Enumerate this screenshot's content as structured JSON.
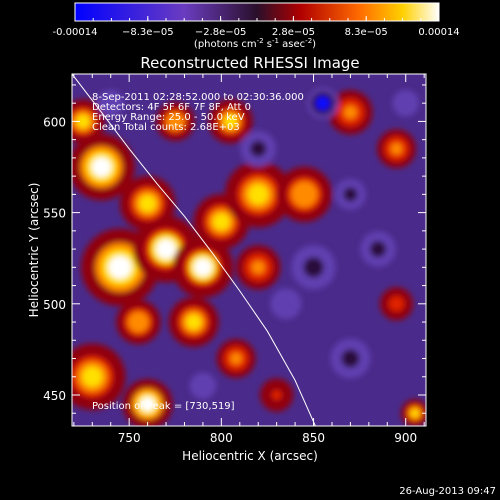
{
  "colorbar": {
    "tick_labels": [
      "-0.00014",
      "−8.3e−05",
      "−2.8e−05",
      "2.8e−05",
      "8.3e−05",
      "0.00014"
    ],
    "units_prefix": "(photons cm",
    "units_exp1": "-2",
    "units_mid": " s",
    "units_exp2": "-1",
    "units_end": " asec",
    "units_exp3": "-2",
    "units_close": ")"
  },
  "annotations": {
    "time_range": "8-Sep-2011 02:28:52.000 to 02:30:36.000",
    "detectors": "Detectors: 4F 5F 6F 7F 8F, Att 0",
    "energy": "Energy Range: 25.0 - 50.0 keV",
    "clean": "Clean    Total counts: 2.68E+03",
    "peak": "Position of Peak = [730,519]"
  },
  "footer": {
    "timestamp": "26-Aug-2013 09:47"
  },
  "chart_data": {
    "type": "heatmap",
    "title": "Reconstructed RHESSI Image",
    "xlabel": "Heliocentric X (arcsec)",
    "ylabel": "Heliocentric Y (arcsec)",
    "xlim": [
      719,
      911
    ],
    "ylim": [
      433,
      626
    ],
    "x_ticks": [
      750,
      800,
      850,
      900
    ],
    "y_ticks": [
      450,
      500,
      550,
      600
    ],
    "colorbar_range": [
      -0.00014,
      0.00014
    ],
    "peak_position": [
      730,
      519
    ],
    "limb_curve": {
      "x": [
        719,
        735,
        750,
        765,
        780,
        795,
        810,
        825,
        840,
        851
      ],
      "y": [
        626,
        605,
        585,
        566,
        548,
        528,
        507,
        485,
        458,
        433
      ]
    },
    "blobs": [
      {
        "x": 735,
        "y": 575,
        "r": 12,
        "v": 1.0
      },
      {
        "x": 745,
        "y": 520,
        "r": 14,
        "v": 1.0
      },
      {
        "x": 770,
        "y": 530,
        "r": 12,
        "v": 0.9
      },
      {
        "x": 760,
        "y": 555,
        "r": 10,
        "v": 0.85
      },
      {
        "x": 790,
        "y": 520,
        "r": 11,
        "v": 0.9
      },
      {
        "x": 800,
        "y": 545,
        "r": 10,
        "v": 0.8
      },
      {
        "x": 820,
        "y": 560,
        "r": 12,
        "v": 0.85
      },
      {
        "x": 845,
        "y": 560,
        "r": 10,
        "v": 0.7
      },
      {
        "x": 725,
        "y": 600,
        "r": 8,
        "v": 0.85
      },
      {
        "x": 730,
        "y": 460,
        "r": 12,
        "v": 0.8
      },
      {
        "x": 760,
        "y": 445,
        "r": 9,
        "v": 0.95
      },
      {
        "x": 775,
        "y": 600,
        "r": 7,
        "v": 0.7
      },
      {
        "x": 805,
        "y": 600,
        "r": 8,
        "v": 0.75
      },
      {
        "x": 820,
        "y": 520,
        "r": 8,
        "v": 0.6
      },
      {
        "x": 785,
        "y": 490,
        "r": 9,
        "v": 0.75
      },
      {
        "x": 755,
        "y": 490,
        "r": 8,
        "v": 0.7
      },
      {
        "x": 808,
        "y": 470,
        "r": 7,
        "v": 0.55
      },
      {
        "x": 870,
        "y": 605,
        "r": 8,
        "v": 0.6
      },
      {
        "x": 895,
        "y": 585,
        "r": 7,
        "v": 0.55
      },
      {
        "x": 895,
        "y": 500,
        "r": 6,
        "v": 0.45
      },
      {
        "x": 905,
        "y": 440,
        "r": 5,
        "v": 0.75
      },
      {
        "x": 830,
        "y": 450,
        "r": 6,
        "v": 0.35
      },
      {
        "x": 855,
        "y": 610,
        "r": 7,
        "v": -0.7
      },
      {
        "x": 820,
        "y": 585,
        "r": 8,
        "v": -0.6
      },
      {
        "x": 850,
        "y": 520,
        "r": 10,
        "v": -0.5
      },
      {
        "x": 870,
        "y": 470,
        "r": 9,
        "v": -0.5
      },
      {
        "x": 885,
        "y": 530,
        "r": 8,
        "v": -0.45
      },
      {
        "x": 835,
        "y": 500,
        "r": 7,
        "v": -0.4
      },
      {
        "x": 870,
        "y": 560,
        "r": 7,
        "v": -0.45
      },
      {
        "x": 740,
        "y": 610,
        "r": 6,
        "v": -0.35
      },
      {
        "x": 790,
        "y": 455,
        "r": 6,
        "v": -0.35
      },
      {
        "x": 900,
        "y": 610,
        "r": 6,
        "v": -0.4
      }
    ]
  }
}
